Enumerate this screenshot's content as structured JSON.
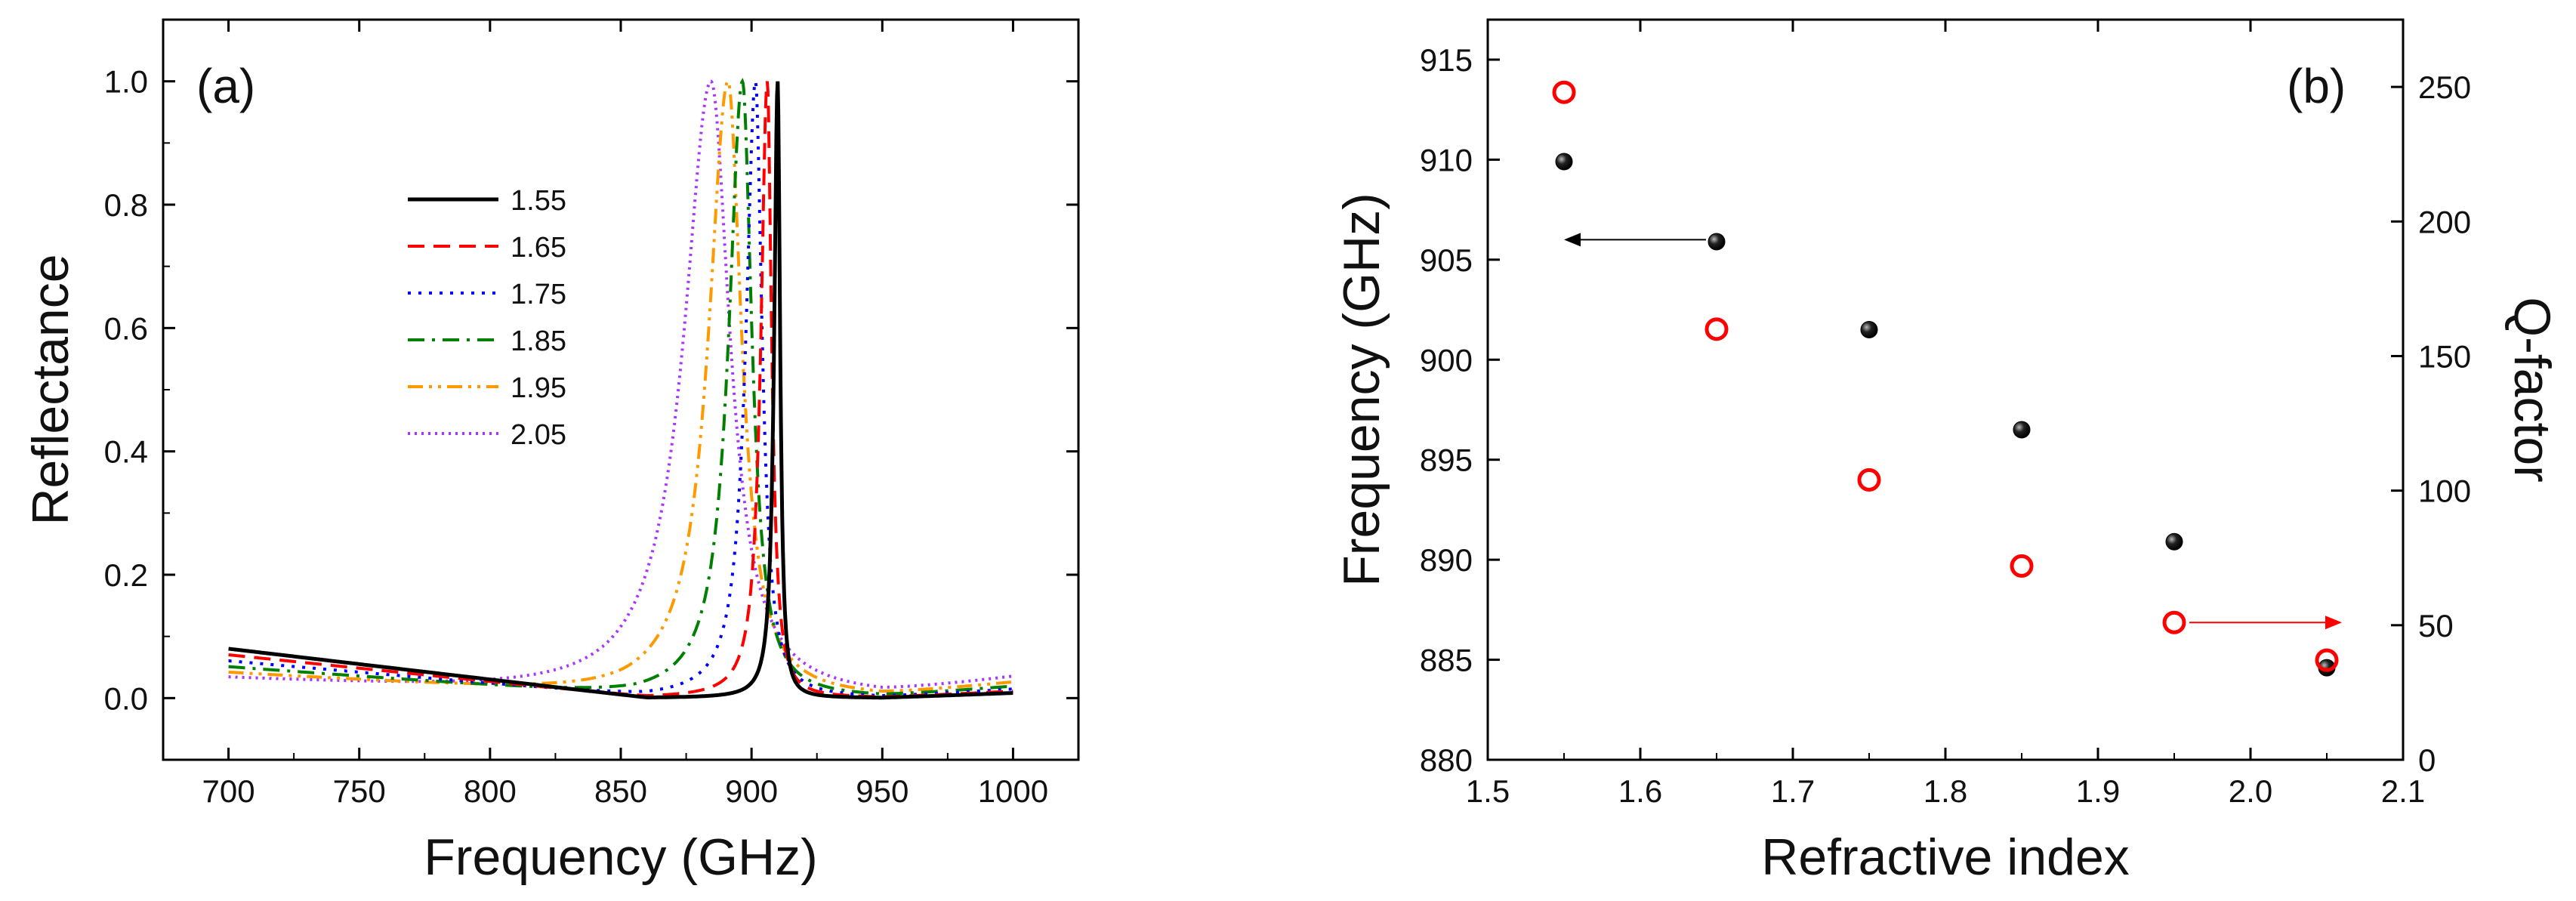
{
  "figure": {
    "colors": {
      "1.55": "#000000",
      "1.65": "#ff0000",
      "1.75": "#0000ff",
      "1.85": "#008000",
      "1.95": "#ff9900",
      "2.05": "#aa33ff",
      "frequency_marker": "#000000",
      "q_marker": "#ff0000"
    }
  },
  "chart_data": [
    {
      "id": "a",
      "type": "line",
      "panel_label": "(a)",
      "xlabel": "Frequency (GHz)",
      "ylabel": "Reflectance",
      "xlim": [
        675,
        1025
      ],
      "ylim": [
        -0.1,
        1.1
      ],
      "xticks": [
        "700",
        "750",
        "800",
        "850",
        "900",
        "950",
        "1000"
      ],
      "yticks": [
        "0.0",
        "0.2",
        "0.4",
        "0.6",
        "0.8",
        "1.0"
      ],
      "legend_position": "upper-left",
      "series": [
        {
          "name": "1.55",
          "color": "#000000",
          "dash": "solid",
          "f0": 910.0,
          "gamma": 1.6,
          "bg_start": 0.08
        },
        {
          "name": "1.65",
          "color": "#ff0000",
          "dash": "dash",
          "f0": 906.0,
          "gamma": 2.9,
          "bg_start": 0.07
        },
        {
          "name": "1.75",
          "color": "#0000ff",
          "dash": "dot",
          "f0": 901.5,
          "gamma": 4.4,
          "bg_start": 0.06
        },
        {
          "name": "1.85",
          "color": "#008000",
          "dash": "dashdot",
          "f0": 896.5,
          "gamma": 6.3,
          "bg_start": 0.05
        },
        {
          "name": "1.95",
          "color": "#ff9900",
          "dash": "dashdotdot",
          "f0": 891.0,
          "gamma": 9.0,
          "bg_start": 0.04
        },
        {
          "name": "2.05",
          "color": "#aa33ff",
          "dash": "shortdot",
          "f0": 884.5,
          "gamma": 12.5,
          "bg_start": 0.03
        }
      ],
      "sample_points": [
        {
          "x": 700,
          "y_1_55": 0.08,
          "y_2_05": 0.03
        },
        {
          "x": 910,
          "y_1_55": 1.0
        },
        {
          "x": 884.5,
          "y_2_05": 1.0
        },
        {
          "x": 1000,
          "y_1_55": 0.0,
          "y_2_05": 0.03
        }
      ]
    },
    {
      "id": "b",
      "type": "scatter",
      "panel_label": "(b)",
      "xlabel": "Refractive index",
      "ylabel_left": "Frequency (GHz)",
      "ylabel_right": "Q-factor",
      "xlim": [
        1.5,
        2.1
      ],
      "ylim_left": [
        880,
        917
      ],
      "ylim_right": [
        0,
        275
      ],
      "xticks": [
        "1.5",
        "1.6",
        "1.7",
        "1.8",
        "1.9",
        "2.0",
        "2.1"
      ],
      "yticks_left": [
        "880",
        "885",
        "890",
        "895",
        "900",
        "905",
        "910",
        "915"
      ],
      "yticks_right": [
        "0",
        "50",
        "100",
        "150",
        "200",
        "250"
      ],
      "x": [
        1.55,
        1.65,
        1.75,
        1.85,
        1.95,
        2.05
      ],
      "series": [
        {
          "name": "Frequency",
          "axis": "left",
          "marker": "filled-circle",
          "color": "#000000",
          "values": [
            909.9,
            905.9,
            901.5,
            896.5,
            890.9,
            884.6
          ]
        },
        {
          "name": "Q-factor",
          "axis": "right",
          "marker": "open-circle",
          "color": "#ff0000",
          "values": [
            248,
            160,
            104,
            72,
            51,
            37
          ]
        }
      ],
      "arrows": [
        {
          "from": [
            1.65,
            906.0
          ],
          "to": [
            1.55,
            906.0
          ],
          "axis": "left",
          "color": "#000000"
        },
        {
          "from": [
            1.95,
            51
          ],
          "to": [
            2.05,
            51
          ],
          "axis": "right",
          "color": "#ff0000"
        }
      ]
    }
  ]
}
